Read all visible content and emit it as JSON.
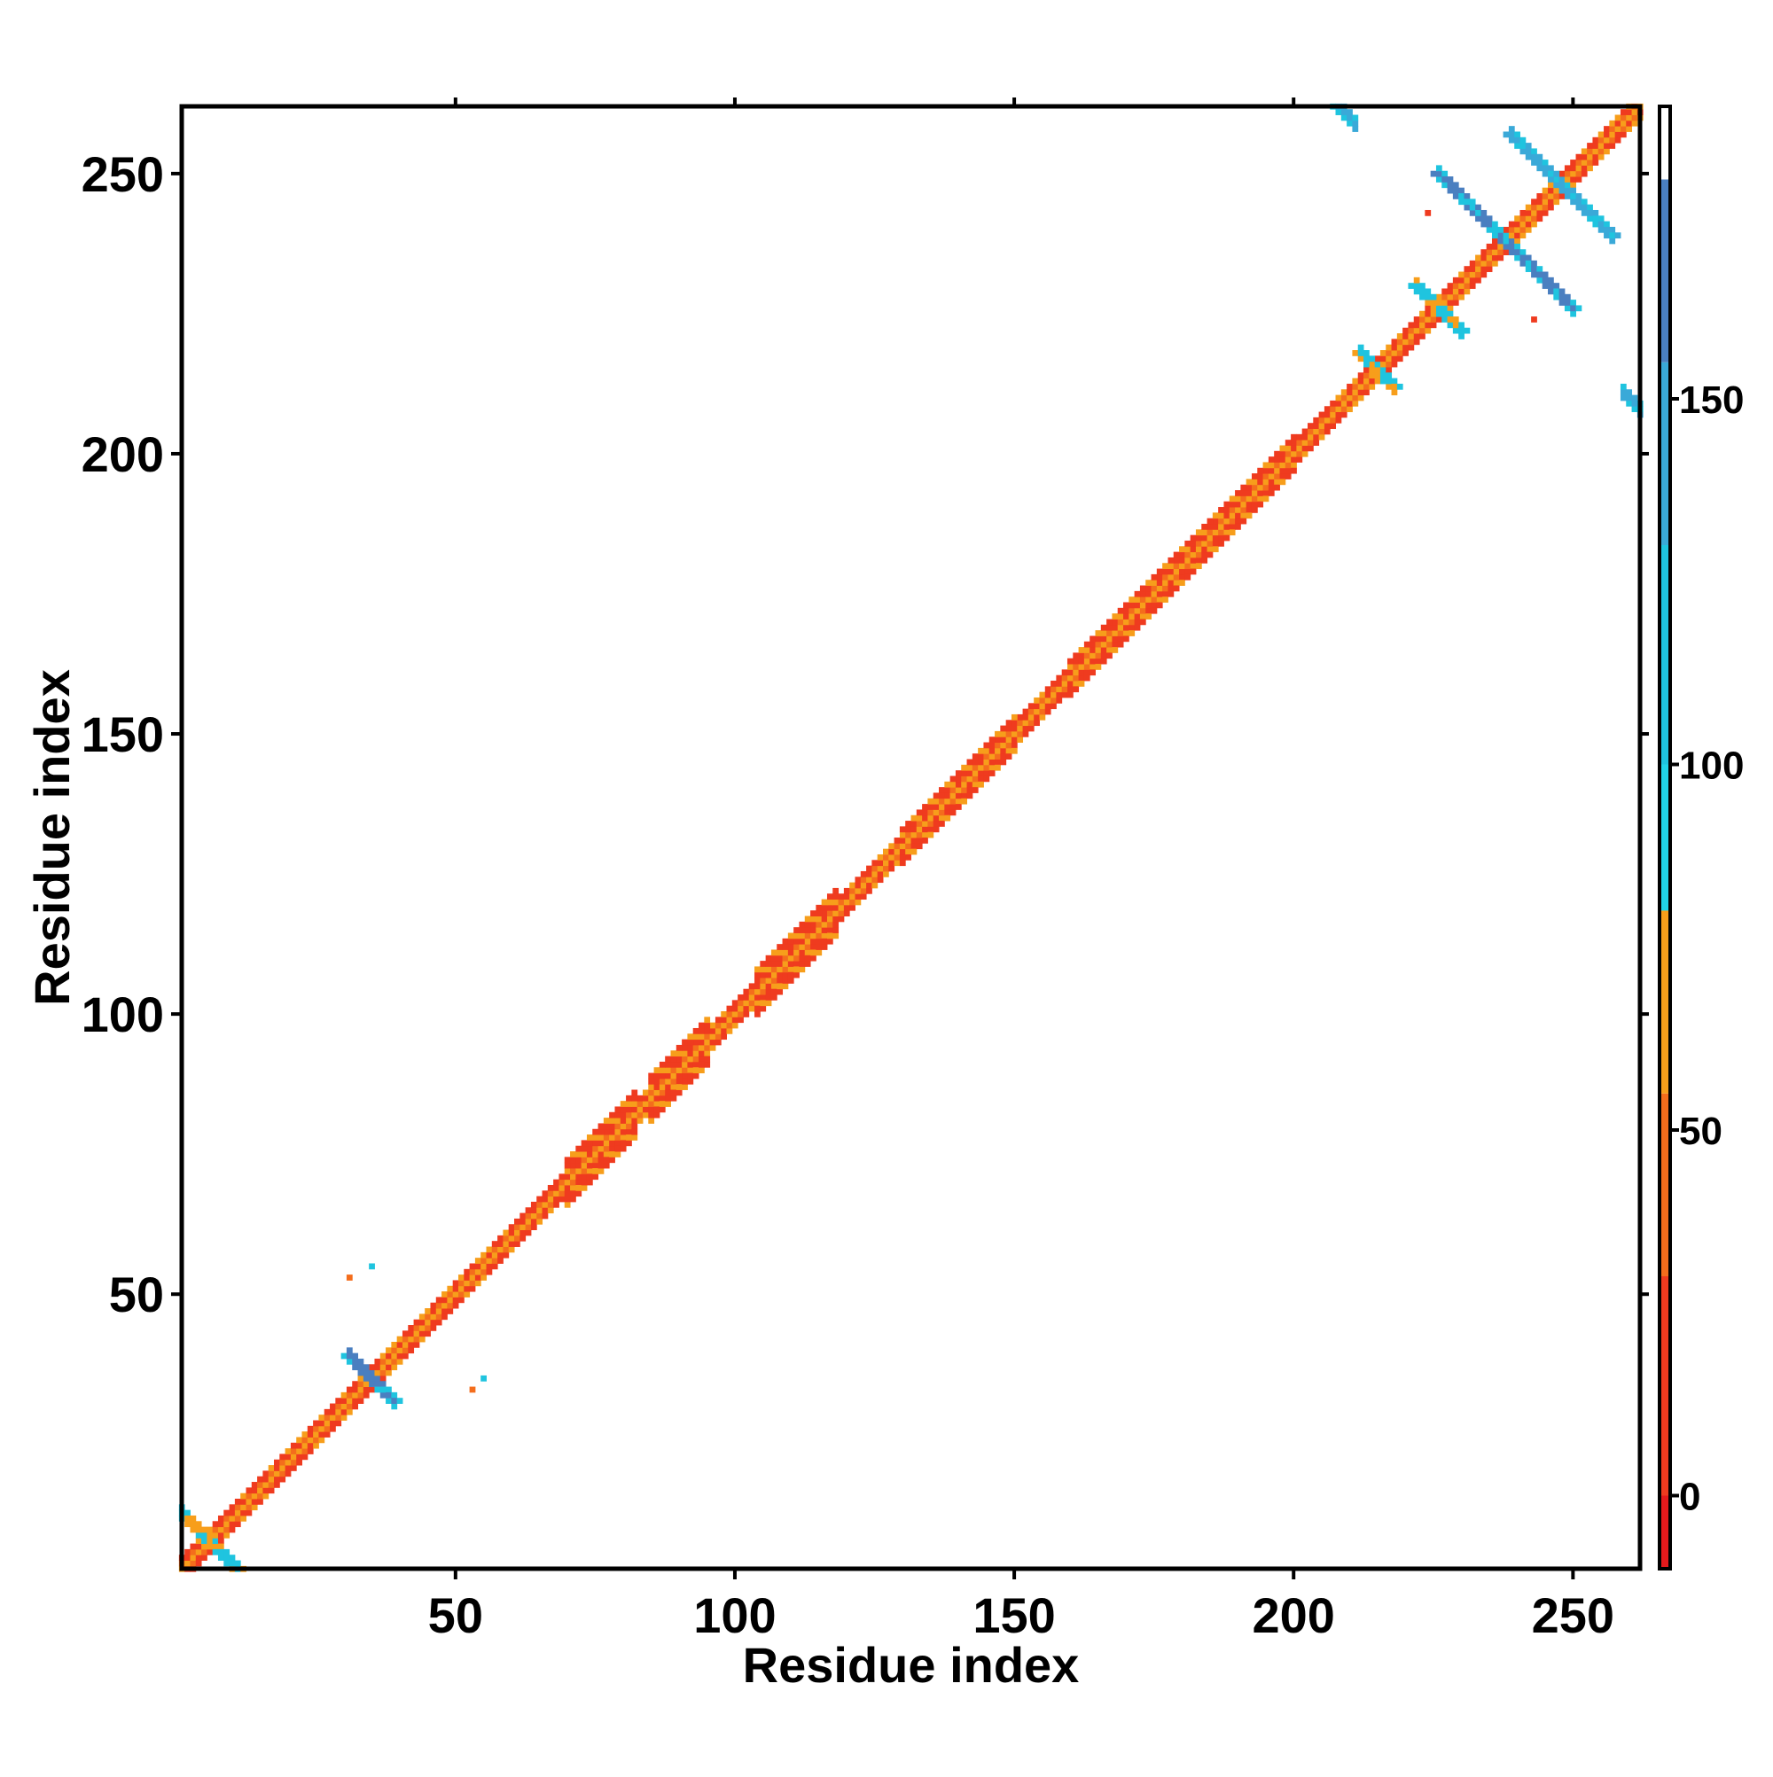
{
  "chart_data": {
    "type": "heatmap",
    "title": "",
    "xlabel": "Residue index",
    "ylabel": "Residue index",
    "xlim": [
      1,
      262
    ],
    "ylim": [
      1,
      262
    ],
    "x_ticks": [
      50,
      100,
      150,
      200,
      250
    ],
    "y_ticks": [
      50,
      100,
      150,
      200,
      250
    ],
    "x_tick_labels": [
      "50",
      "100",
      "150",
      "200",
      "250"
    ],
    "y_tick_labels": [
      "50",
      "100",
      "150",
      "200",
      "250"
    ],
    "grid": false,
    "colorbar": {
      "range": [
        -10,
        190
      ],
      "ticks": [
        0,
        50,
        100,
        150
      ],
      "tick_labels": [
        "0",
        "50",
        "100",
        "150"
      ],
      "bands": [
        {
          "from": -10,
          "to": 0,
          "color": "#e41a1c"
        },
        {
          "from": 0,
          "to": 30,
          "color": "#ef3b1f"
        },
        {
          "from": 30,
          "to": 55,
          "color": "#f46d1c"
        },
        {
          "from": 55,
          "to": 80,
          "color": "#f79e1b"
        },
        {
          "from": 80,
          "to": 100,
          "color": "#21d4e8"
        },
        {
          "from": 100,
          "to": 130,
          "color": "#1fc4df"
        },
        {
          "from": 130,
          "to": 155,
          "color": "#3aa9d8"
        },
        {
          "from": 155,
          "to": 180,
          "color": "#4a7fc0"
        },
        {
          "from": 180,
          "to": 190,
          "color": "#ffffff"
        }
      ]
    },
    "diagonal_segments": [
      {
        "from": 1,
        "to": 262,
        "width": 1.5,
        "value": 40
      },
      {
        "from": 1,
        "to": 262,
        "width": 0.6,
        "value": 70
      }
    ],
    "helix_bands": [
      {
        "from": 70,
        "to": 82,
        "width": 4,
        "value": 20
      },
      {
        "from": 85,
        "to": 95,
        "width": 3.5,
        "value": 20
      },
      {
        "from": 104,
        "to": 118,
        "width": 4,
        "value": 20
      },
      {
        "from": 160,
        "to": 200,
        "width": 2.5,
        "value": 15
      },
      {
        "from": 130,
        "to": 150,
        "width": 2.5,
        "value": 15
      }
    ],
    "contact_clusters": [
      {
        "i": 6,
        "j": 6,
        "spread": 6,
        "value": 110
      },
      {
        "i": 35,
        "j": 35,
        "spread": 4,
        "value": 160
      },
      {
        "i": 238,
        "j": 238,
        "spread": 12,
        "value": 160
      },
      {
        "i": 248,
        "j": 248,
        "spread": 9,
        "value": 150
      },
      {
        "i": 261,
        "j": 209,
        "spread": 2,
        "value": 140
      },
      {
        "i": 209,
        "j": 261,
        "spread": 2,
        "value": 140
      },
      {
        "i": 226,
        "j": 226,
        "spread": 4,
        "value": 110
      },
      {
        "i": 215,
        "j": 215,
        "spread": 3,
        "value": 100
      }
    ],
    "isolated_points": [
      {
        "i": 31,
        "j": 53,
        "value": 40
      },
      {
        "i": 35,
        "j": 55,
        "value": 100
      },
      {
        "i": 53,
        "j": 33,
        "value": 40
      },
      {
        "i": 55,
        "j": 35,
        "value": 100
      },
      {
        "i": 224,
        "j": 243,
        "value": 10
      },
      {
        "i": 243,
        "j": 224,
        "value": 10
      }
    ]
  }
}
